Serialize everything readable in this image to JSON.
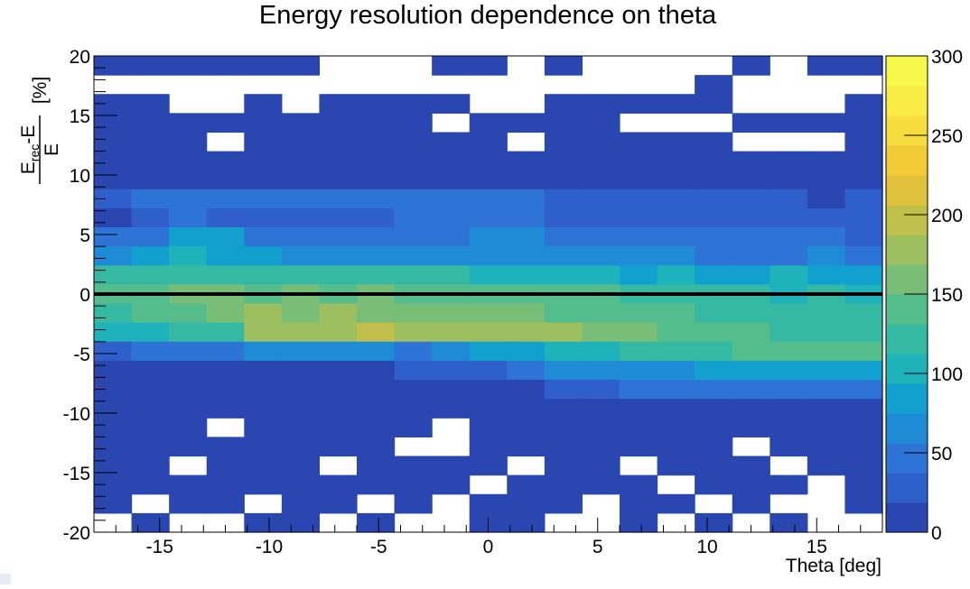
{
  "chart_data": {
    "type": "heatmap",
    "title": "Energy resolution dependence on theta",
    "xlabel": "Theta [deg]",
    "ylabel": {
      "main": "E",
      "sub": "rec",
      "mid": "-E",
      "denominator": "E",
      "unit": "[%]"
    },
    "xlim": [
      -18,
      18
    ],
    "ylim": [
      -20,
      20
    ],
    "x_ticks": [
      -15,
      -10,
      -5,
      0,
      5,
      10,
      15
    ],
    "y_ticks": [
      -20,
      -15,
      -10,
      -5,
      0,
      5,
      10,
      15,
      20
    ],
    "z_range": [
      0,
      300
    ],
    "z_ticks": [
      0,
      50,
      100,
      150,
      200,
      250,
      300
    ],
    "bins_x": 21,
    "bins_y": 25,
    "reference_line_y": 0,
    "colors": {
      "palette": [
        "#2a46b0",
        "#2f5fcb",
        "#2e74d7",
        "#1f8bd6",
        "#12a0cf",
        "#1eb2bb",
        "#35b9a3",
        "#55bd8b",
        "#78be76",
        "#9ebf5f",
        "#c1bf4b",
        "#e1c03b",
        "#f2cc36",
        "#f6dc3c",
        "#f7ec44",
        "#f8f84b"
      ],
      "empty": "#ffffff",
      "line": "#000000"
    },
    "data": [
      [
        1,
        1,
        1,
        1,
        1,
        1,
        0,
        0,
        0,
        1,
        1,
        0,
        1,
        0,
        0,
        0,
        0,
        1,
        0,
        1,
        1
      ],
      [
        0,
        0,
        0,
        0,
        0,
        0,
        0,
        0,
        0,
        0,
        0,
        0,
        0,
        0,
        0,
        0,
        1,
        0,
        0,
        0,
        0
      ],
      [
        1,
        1,
        0,
        0,
        1,
        0,
        1,
        1,
        1,
        1,
        0,
        0,
        1,
        1,
        1,
        1,
        1,
        0,
        0,
        0,
        1
      ],
      [
        1,
        1,
        1,
        1,
        1,
        1,
        1,
        1,
        1,
        0,
        1,
        1,
        1,
        1,
        0,
        0,
        0,
        1,
        1,
        1,
        1
      ],
      [
        1,
        1,
        1,
        0,
        1,
        1,
        1,
        1,
        1,
        1,
        1,
        0,
        1,
        1,
        1,
        1,
        1,
        0,
        0,
        0,
        1
      ],
      [
        1,
        1,
        1,
        1,
        1,
        1,
        1,
        1,
        1,
        1,
        1,
        1,
        1,
        1,
        1,
        1,
        1,
        1,
        1,
        1,
        1
      ],
      [
        1,
        1,
        1,
        1,
        1,
        1,
        1,
        1,
        1,
        1,
        1,
        1,
        1,
        1,
        1,
        1,
        1,
        1,
        1,
        1,
        1
      ],
      [
        2,
        3,
        3,
        3,
        3,
        3,
        3,
        3,
        3,
        3,
        3,
        3,
        2,
        2,
        2,
        2,
        2,
        2,
        2,
        1,
        2
      ],
      [
        1,
        2,
        3,
        2,
        2,
        2,
        2,
        2,
        3,
        3,
        3,
        3,
        2,
        2,
        2,
        2,
        2,
        2,
        2,
        2,
        2
      ],
      [
        3,
        3,
        5,
        5,
        3,
        3,
        3,
        3,
        3,
        3,
        4,
        4,
        3,
        3,
        3,
        3,
        3,
        3,
        3,
        3,
        2
      ],
      [
        4,
        5,
        6,
        5,
        5,
        4,
        4,
        4,
        4,
        4,
        4,
        4,
        4,
        4,
        4,
        4,
        3,
        3,
        3,
        4,
        3
      ],
      [
        7,
        7,
        7,
        7,
        7,
        7,
        7,
        7,
        7,
        7,
        6,
        6,
        6,
        6,
        5,
        6,
        5,
        5,
        6,
        5,
        5
      ],
      [
        8,
        8,
        9,
        9,
        8,
        9,
        8,
        9,
        8,
        8,
        8,
        8,
        8,
        8,
        7,
        7,
        7,
        7,
        6,
        7,
        6
      ],
      [
        7,
        8,
        8,
        9,
        10,
        9,
        10,
        9,
        9,
        9,
        9,
        9,
        8,
        8,
        8,
        8,
        7,
        7,
        7,
        7,
        7
      ],
      [
        6,
        6,
        7,
        7,
        10,
        10,
        10,
        11,
        10,
        10,
        10,
        10,
        10,
        9,
        9,
        8,
        8,
        8,
        7,
        7,
        7
      ],
      [
        2,
        3,
        3,
        3,
        4,
        4,
        4,
        4,
        3,
        4,
        5,
        5,
        6,
        6,
        7,
        7,
        7,
        8,
        8,
        8,
        8
      ],
      [
        1,
        1,
        1,
        1,
        1,
        1,
        1,
        1,
        2,
        2,
        2,
        3,
        4,
        4,
        4,
        4,
        5,
        5,
        5,
        5,
        5
      ],
      [
        1,
        1,
        1,
        1,
        1,
        1,
        1,
        1,
        1,
        1,
        1,
        1,
        2,
        2,
        3,
        3,
        3,
        3,
        3,
        3,
        3
      ],
      [
        1,
        1,
        1,
        1,
        1,
        1,
        1,
        1,
        1,
        1,
        1,
        1,
        1,
        1,
        1,
        1,
        1,
        1,
        1,
        1,
        1
      ],
      [
        1,
        1,
        1,
        0,
        1,
        1,
        1,
        1,
        1,
        0,
        1,
        1,
        1,
        1,
        1,
        1,
        1,
        1,
        1,
        1,
        1
      ],
      [
        1,
        1,
        1,
        1,
        1,
        1,
        1,
        1,
        0,
        0,
        1,
        1,
        1,
        1,
        1,
        1,
        1,
        0,
        1,
        1,
        1
      ],
      [
        1,
        1,
        0,
        1,
        1,
        1,
        0,
        1,
        1,
        1,
        1,
        0,
        1,
        1,
        0,
        1,
        1,
        1,
        0,
        1,
        1
      ],
      [
        1,
        1,
        1,
        1,
        1,
        1,
        1,
        1,
        1,
        1,
        0,
        1,
        1,
        1,
        1,
        0,
        1,
        1,
        1,
        0,
        1
      ],
      [
        1,
        0,
        1,
        1,
        0,
        1,
        1,
        0,
        1,
        0,
        1,
        1,
        1,
        0,
        1,
        1,
        0,
        1,
        0,
        0,
        1
      ],
      [
        0,
        1,
        0,
        0,
        1,
        1,
        0,
        1,
        0,
        0,
        1,
        1,
        0,
        0,
        1,
        0,
        1,
        0,
        1,
        0,
        0
      ]
    ]
  }
}
